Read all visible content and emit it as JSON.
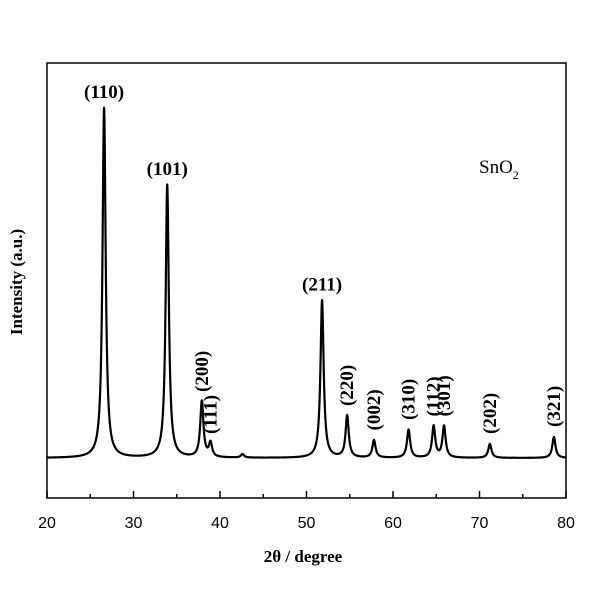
{
  "chart_data": {
    "type": "line",
    "title": "",
    "xlabel": "2θ / degree",
    "ylabel": "Intensity (a.u.)",
    "xlim": [
      20,
      80
    ],
    "ylim": [
      0,
      1.12
    ],
    "xticks": [
      "20",
      "30",
      "40",
      "50",
      "60",
      "70",
      "80"
    ],
    "yticks": [],
    "grid": false,
    "legend": "none",
    "sample": {
      "base": "SnO",
      "sub": "2"
    },
    "baseline": 0.0,
    "peaks": [
      {
        "x": 26.6,
        "y": 1.0,
        "label": "(110)",
        "labelOrientation": "horizontal"
      },
      {
        "x": 33.9,
        "y": 0.78,
        "label": "(101)",
        "labelOrientation": "horizontal"
      },
      {
        "x": 37.9,
        "y": 0.16,
        "label": "(200)",
        "labelOrientation": "vertical"
      },
      {
        "x": 38.9,
        "y": 0.04,
        "label": "(111)",
        "labelOrientation": "vertical"
      },
      {
        "x": 42.6,
        "y": 0.01,
        "label": "",
        "labelOrientation": "none"
      },
      {
        "x": 51.8,
        "y": 0.45,
        "label": "(211)",
        "labelOrientation": "horizontal"
      },
      {
        "x": 54.7,
        "y": 0.12,
        "label": "(220)",
        "labelOrientation": "vertical"
      },
      {
        "x": 57.8,
        "y": 0.05,
        "label": "(002)",
        "labelOrientation": "vertical"
      },
      {
        "x": 61.8,
        "y": 0.08,
        "label": "(310)",
        "labelOrientation": "vertical"
      },
      {
        "x": 64.7,
        "y": 0.09,
        "label": "(112)",
        "labelOrientation": "vertical"
      },
      {
        "x": 65.9,
        "y": 0.09,
        "label": "(301)",
        "labelOrientation": "vertical"
      },
      {
        "x": 71.2,
        "y": 0.04,
        "label": "(202)",
        "labelOrientation": "vertical"
      },
      {
        "x": 78.6,
        "y": 0.06,
        "label": "(321)",
        "labelOrientation": "vertical"
      }
    ]
  }
}
